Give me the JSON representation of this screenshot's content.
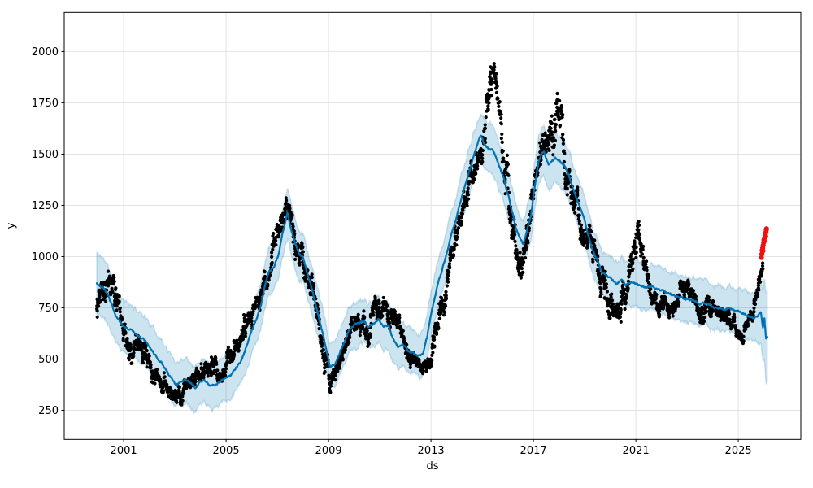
{
  "chart_data": {
    "type": "scatter",
    "description": "Prophet-style time-series forecast: black observed points, dark blue yhat forecast line with light blue uncertainty interval, red flagged recent points at the end",
    "title": "",
    "xlabel": "ds",
    "ylabel": "y",
    "x_ticks": [
      2001,
      2005,
      2009,
      2013,
      2017,
      2021,
      2025
    ],
    "y_ticks": [
      250,
      500,
      750,
      1000,
      1250,
      1500,
      1750,
      2000
    ],
    "xlim": [
      1998.68,
      2027.44
    ],
    "ylim": [
      108,
      2191
    ],
    "grid": true,
    "legend": "none",
    "forecast": {
      "name": "yhat",
      "keypoints_format": [
        "year",
        "yhat",
        "interval_halfwidth"
      ],
      "keypoints": [
        [
          1999.95,
          869,
          150
        ],
        [
          2000.2,
          848,
          145
        ],
        [
          2000.4,
          810,
          140
        ],
        [
          2000.55,
          762,
          135
        ],
        [
          2000.7,
          706,
          130
        ],
        [
          2000.9,
          670,
          128
        ],
        [
          2001.1,
          650,
          125
        ],
        [
          2001.3,
          636,
          122
        ],
        [
          2001.55,
          616,
          120
        ],
        [
          2001.8,
          596,
          120
        ],
        [
          2002.1,
          544,
          118
        ],
        [
          2002.3,
          510,
          116
        ],
        [
          2002.5,
          478,
          115
        ],
        [
          2002.7,
          440,
          112
        ],
        [
          2002.9,
          396,
          110
        ],
        [
          2003.05,
          374,
          110
        ],
        [
          2003.25,
          388,
          112
        ],
        [
          2003.45,
          398,
          112
        ],
        [
          2003.65,
          378,
          110
        ],
        [
          2003.8,
          358,
          110
        ],
        [
          2004.0,
          386,
          112
        ],
        [
          2004.15,
          398,
          112
        ],
        [
          2004.35,
          378,
          110
        ],
        [
          2004.55,
          366,
          110
        ],
        [
          2004.75,
          390,
          110
        ],
        [
          2004.95,
          406,
          110
        ],
        [
          2005.15,
          420,
          110
        ],
        [
          2005.4,
          464,
          110
        ],
        [
          2005.6,
          500,
          110
        ],
        [
          2005.8,
          560,
          112
        ],
        [
          2006.0,
          640,
          114
        ],
        [
          2006.2,
          700,
          114
        ],
        [
          2006.35,
          760,
          114
        ],
        [
          2006.5,
          850,
          115
        ],
        [
          2006.65,
          920,
          115
        ],
        [
          2006.85,
          945,
          115
        ],
        [
          2007.05,
          1010,
          118
        ],
        [
          2007.2,
          1110,
          118
        ],
        [
          2007.4,
          1215,
          120
        ],
        [
          2007.55,
          1130,
          120
        ],
        [
          2007.7,
          1060,
          118
        ],
        [
          2007.85,
          1010,
          116
        ],
        [
          2008.0,
          1000,
          116
        ],
        [
          2008.2,
          905,
          114
        ],
        [
          2008.35,
          840,
          114
        ],
        [
          2008.5,
          760,
          113
        ],
        [
          2008.65,
          690,
          112
        ],
        [
          2008.8,
          611,
          111
        ],
        [
          2008.95,
          520,
          110
        ],
        [
          2009.06,
          464,
          110
        ],
        [
          2009.25,
          472,
          110
        ],
        [
          2009.4,
          520,
          110
        ],
        [
          2009.6,
          580,
          110
        ],
        [
          2009.8,
          640,
          110
        ],
        [
          2010.0,
          665,
          110
        ],
        [
          2010.2,
          678,
          110
        ],
        [
          2010.4,
          685,
          110
        ],
        [
          2010.55,
          655,
          110
        ],
        [
          2010.75,
          672,
          110
        ],
        [
          2010.95,
          693,
          110
        ],
        [
          2011.15,
          658,
          110
        ],
        [
          2011.35,
          660,
          110
        ],
        [
          2011.5,
          605,
          108
        ],
        [
          2011.7,
          556,
          106
        ],
        [
          2011.9,
          576,
          106
        ],
        [
          2012.1,
          544,
          105
        ],
        [
          2012.3,
          535,
          105
        ],
        [
          2012.55,
          516,
          105
        ],
        [
          2012.7,
          532,
          105
        ],
        [
          2012.85,
          611,
          106
        ],
        [
          2013.0,
          720,
          108
        ],
        [
          2013.2,
          830,
          108
        ],
        [
          2013.4,
          920,
          110
        ],
        [
          2013.6,
          1010,
          110
        ],
        [
          2013.8,
          1110,
          112
        ],
        [
          2014.0,
          1190,
          112
        ],
        [
          2014.2,
          1290,
          113
        ],
        [
          2014.4,
          1370,
          114
        ],
        [
          2014.6,
          1460,
          114
        ],
        [
          2014.8,
          1540,
          116
        ],
        [
          2014.95,
          1591,
          118
        ],
        [
          2015.1,
          1548,
          118
        ],
        [
          2015.25,
          1528,
          118
        ],
        [
          2015.4,
          1524,
          118
        ],
        [
          2015.55,
          1484,
          118
        ],
        [
          2015.7,
          1429,
          117
        ],
        [
          2015.85,
          1377,
          116
        ],
        [
          2016.0,
          1310,
          115
        ],
        [
          2016.15,
          1230,
          114
        ],
        [
          2016.3,
          1151,
          113
        ],
        [
          2016.45,
          1099,
          112
        ],
        [
          2016.6,
          1056,
          112
        ],
        [
          2016.75,
          1127,
          113
        ],
        [
          2016.9,
          1195,
          114
        ],
        [
          2017.05,
          1340,
          116
        ],
        [
          2017.2,
          1468,
          118
        ],
        [
          2017.4,
          1516,
          120
        ],
        [
          2017.6,
          1448,
          119
        ],
        [
          2017.85,
          1484,
          119
        ],
        [
          2018.0,
          1464,
          118
        ],
        [
          2018.2,
          1448,
          118
        ],
        [
          2018.4,
          1389,
          117
        ],
        [
          2018.6,
          1310,
          116
        ],
        [
          2018.8,
          1246,
          115
        ],
        [
          2019.0,
          1179,
          114
        ],
        [
          2019.15,
          1100,
          113
        ],
        [
          2019.3,
          1035,
          112
        ],
        [
          2019.5,
          980,
          111
        ],
        [
          2019.65,
          929,
          110
        ],
        [
          2019.85,
          905,
          110
        ],
        [
          2020.05,
          890,
          110
        ],
        [
          2020.25,
          861,
          110
        ],
        [
          2020.45,
          893,
          110
        ],
        [
          2020.6,
          861,
          110
        ],
        [
          2020.8,
          875,
          110
        ],
        [
          2021.0,
          868,
          110
        ],
        [
          2021.2,
          858,
          110
        ],
        [
          2021.4,
          850,
          110
        ],
        [
          2021.6,
          856,
          110
        ],
        [
          2021.85,
          840,
          110
        ],
        [
          2022.1,
          833,
          110
        ],
        [
          2022.3,
          820,
          110
        ],
        [
          2022.5,
          810,
          110
        ],
        [
          2022.75,
          800,
          110
        ],
        [
          2023.0,
          792,
          110
        ],
        [
          2023.3,
          780,
          110
        ],
        [
          2023.55,
          768,
          110
        ],
        [
          2023.8,
          774,
          110
        ],
        [
          2024.0,
          754,
          110
        ],
        [
          2024.25,
          748,
          110
        ],
        [
          2024.45,
          740,
          110
        ],
        [
          2024.65,
          750,
          110
        ],
        [
          2024.85,
          732,
          110
        ],
        [
          2025.05,
          728,
          112
        ],
        [
          2025.25,
          718,
          114
        ],
        [
          2025.45,
          708,
          116
        ],
        [
          2025.6,
          700,
          118
        ],
        [
          2025.75,
          712,
          126
        ],
        [
          2025.88,
          728,
          150
        ],
        [
          2025.96,
          655,
          175
        ],
        [
          2026.02,
          705,
          195
        ],
        [
          2026.08,
          600,
          215
        ],
        [
          2026.14,
          612,
          222
        ]
      ]
    },
    "observed": {
      "name": "y (historical observations)",
      "keypoints_format": [
        "year",
        "center",
        "half_spread"
      ],
      "keypoints": [
        [
          1999.95,
          760,
          125
        ],
        [
          2000.15,
          800,
          130
        ],
        [
          2000.35,
          845,
          150
        ],
        [
          2000.55,
          815,
          125
        ],
        [
          2000.8,
          730,
          115
        ],
        [
          2001.05,
          640,
          105
        ],
        [
          2001.3,
          520,
          95
        ],
        [
          2001.55,
          555,
          90
        ],
        [
          2001.8,
          545,
          100
        ],
        [
          2002.05,
          445,
          85
        ],
        [
          2002.3,
          405,
          80
        ],
        [
          2002.6,
          350,
          70
        ],
        [
          2002.9,
          330,
          62
        ],
        [
          2003.2,
          332,
          60
        ],
        [
          2003.5,
          360,
          68
        ],
        [
          2003.8,
          420,
          70
        ],
        [
          2004.1,
          440,
          70
        ],
        [
          2004.4,
          468,
          70
        ],
        [
          2004.7,
          450,
          68
        ],
        [
          2005.0,
          472,
          70
        ],
        [
          2005.3,
          540,
          78
        ],
        [
          2005.6,
          610,
          82
        ],
        [
          2005.9,
          680,
          88
        ],
        [
          2006.2,
          760,
          92
        ],
        [
          2006.5,
          890,
          100
        ],
        [
          2006.8,
          1010,
          95
        ],
        [
          2007.1,
          1120,
          100
        ],
        [
          2007.35,
          1235,
          112
        ],
        [
          2007.6,
          1150,
          110
        ],
        [
          2007.85,
          1035,
          100
        ],
        [
          2008.1,
          960,
          100
        ],
        [
          2008.35,
          870,
          108
        ],
        [
          2008.6,
          730,
          118
        ],
        [
          2008.85,
          520,
          112
        ],
        [
          2009.05,
          370,
          82
        ],
        [
          2009.3,
          430,
          80
        ],
        [
          2009.55,
          560,
          82
        ],
        [
          2009.8,
          640,
          82
        ],
        [
          2010.05,
          690,
          82
        ],
        [
          2010.3,
          670,
          80
        ],
        [
          2010.55,
          650,
          88
        ],
        [
          2010.8,
          722,
          88
        ],
        [
          2011.05,
          758,
          82
        ],
        [
          2011.3,
          700,
          88
        ],
        [
          2011.55,
          740,
          88
        ],
        [
          2011.8,
          640,
          90
        ],
        [
          2012.05,
          560,
          80
        ],
        [
          2012.3,
          520,
          70
        ],
        [
          2012.55,
          470,
          62
        ],
        [
          2012.8,
          482,
          62
        ],
        [
          2013.0,
          520,
          85
        ],
        [
          2013.25,
          660,
          95
        ],
        [
          2013.5,
          810,
          105
        ],
        [
          2013.75,
          960,
          110
        ],
        [
          2014.0,
          1090,
          115
        ],
        [
          2014.25,
          1240,
          110
        ],
        [
          2014.5,
          1350,
          110
        ],
        [
          2014.75,
          1460,
          110
        ],
        [
          2014.95,
          1550,
          110
        ],
        [
          2015.1,
          1630,
          140
        ],
        [
          2015.3,
          1850,
          160
        ],
        [
          2015.45,
          1945,
          150
        ],
        [
          2015.6,
          1780,
          155
        ],
        [
          2015.8,
          1560,
          150
        ],
        [
          2016.0,
          1350,
          140
        ],
        [
          2016.2,
          1150,
          130
        ],
        [
          2016.35,
          990,
          140
        ],
        [
          2016.5,
          880,
          150
        ],
        [
          2016.65,
          1000,
          140
        ],
        [
          2016.8,
          1120,
          130
        ],
        [
          2016.95,
          1300,
          128
        ],
        [
          2017.2,
          1455,
          138
        ],
        [
          2017.45,
          1520,
          130
        ],
        [
          2017.7,
          1600,
          148
        ],
        [
          2017.95,
          1720,
          175
        ],
        [
          2018.15,
          1505,
          148
        ],
        [
          2018.4,
          1380,
          128
        ],
        [
          2018.65,
          1230,
          122
        ],
        [
          2018.9,
          1105,
          112
        ],
        [
          2019.15,
          1120,
          110
        ],
        [
          2019.35,
          1050,
          110
        ],
        [
          2019.55,
          960,
          130
        ],
        [
          2019.75,
          880,
          130
        ],
        [
          2019.95,
          780,
          130
        ],
        [
          2020.15,
          700,
          120
        ],
        [
          2020.35,
          720,
          130
        ],
        [
          2020.55,
          830,
          110
        ],
        [
          2020.75,
          930,
          95
        ],
        [
          2020.95,
          1040,
          100
        ],
        [
          2021.1,
          1090,
          100
        ],
        [
          2021.3,
          990,
          90
        ],
        [
          2021.5,
          860,
          85
        ],
        [
          2021.7,
          790,
          75
        ],
        [
          2021.9,
          765,
          70
        ],
        [
          2022.1,
          780,
          70
        ],
        [
          2022.35,
          742,
          70
        ],
        [
          2022.6,
          800,
          78
        ],
        [
          2022.85,
          868,
          78
        ],
        [
          2023.1,
          830,
          72
        ],
        [
          2023.35,
          762,
          70
        ],
        [
          2023.6,
          730,
          70
        ],
        [
          2023.85,
          790,
          70
        ],
        [
          2024.1,
          760,
          70
        ],
        [
          2024.35,
          700,
          70
        ],
        [
          2024.6,
          722,
          68
        ],
        [
          2024.85,
          640,
          62
        ],
        [
          2025.05,
          612,
          56
        ],
        [
          2025.25,
          648,
          58
        ],
        [
          2025.45,
          700,
          60
        ],
        [
          2025.62,
          760,
          70
        ],
        [
          2025.75,
          830,
          75
        ],
        [
          2025.88,
          920,
          55
        ],
        [
          2025.96,
          965,
          35
        ]
      ]
    },
    "anomalies": {
      "name": "flagged points (red)",
      "points_format": [
        "year",
        "value"
      ],
      "points": [
        [
          2025.9,
          995
        ],
        [
          2025.92,
          1012
        ],
        [
          2025.93,
          1030
        ],
        [
          2025.95,
          1042
        ],
        [
          2025.96,
          1028
        ],
        [
          2025.97,
          1055
        ],
        [
          2025.99,
          1068
        ],
        [
          2026.0,
          1082
        ],
        [
          2026.01,
          1075
        ],
        [
          2026.03,
          1092
        ],
        [
          2026.04,
          1104
        ],
        [
          2026.06,
          1112
        ],
        [
          2026.07,
          1098
        ],
        [
          2026.08,
          1120
        ],
        [
          2026.09,
          1130
        ],
        [
          2026.1,
          1136
        ]
      ]
    },
    "colors": {
      "observed": "#000000",
      "forecast_line": "#0072b2",
      "uncertainty_band": "#0072b2",
      "band_opacity": 0.2,
      "anomaly": "#ee1010",
      "grid": "#e3e3e3",
      "axis": "#000000",
      "background": "#ffffff"
    }
  }
}
